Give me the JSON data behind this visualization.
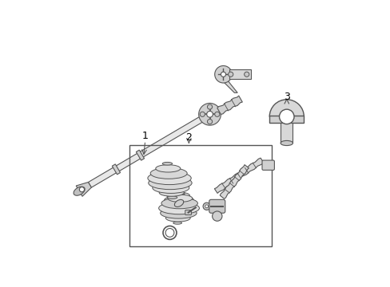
{
  "bg_color": "#ffffff",
  "line_color": "#555555",
  "label_color": "#000000",
  "figsize": [
    4.89,
    3.6
  ],
  "dpi": 100
}
